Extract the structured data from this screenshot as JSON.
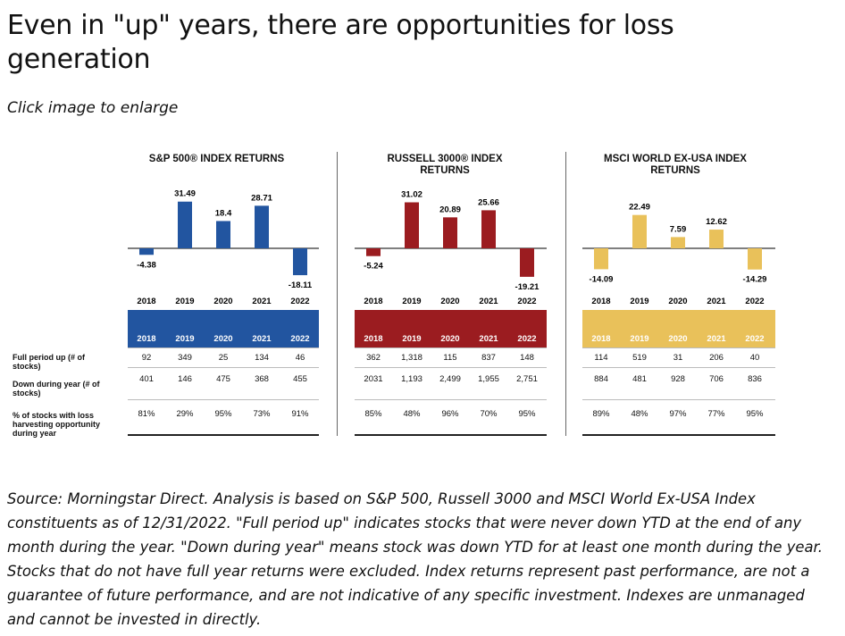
{
  "page": {
    "title": "Even in \"up\" years, there are opportunities for loss generation",
    "subtitle": "Click image to enlarge",
    "source": "Source: Morningstar Direct. Analysis is based on S&P 500, Russell 3000 and MSCI World Ex-USA Index constituents as of 12/31/2022. \"Full period up\" indicates stocks that were never down YTD at the end of any month during the year. \"Down during year\" means stock was down YTD for at least one month during the year. Stocks that do not have full year returns were excluded. Index returns represent past performance, are not a guarantee of future performance, and are not indicative of any specific investment. Indexes are unmanaged and cannot be invested in directly."
  },
  "table": {
    "row_labels": [
      "Full period up (# of stocks)",
      "Down during year (# of stocks)",
      "% of stocks with loss harvesting opportunity during year"
    ]
  },
  "chart_data": [
    {
      "type": "bar",
      "title": "S&P 500® INDEX RETURNS",
      "color": "#2255a0",
      "categories": [
        "2018",
        "2019",
        "2020",
        "2021",
        "2022"
      ],
      "values": [
        -4.38,
        31.49,
        18.4,
        28.71,
        -18.11
      ],
      "value_labels": [
        "-4.38",
        "31.49",
        "18.4",
        "28.71",
        "-18.11"
      ],
      "table": {
        "full_period_up": [
          "92",
          "349",
          "25",
          "134",
          "46"
        ],
        "down_during_year": [
          "401",
          "146",
          "475",
          "368",
          "455"
        ],
        "pct_loss_harvesting": [
          "81%",
          "29%",
          "95%",
          "73%",
          "91%"
        ]
      }
    },
    {
      "type": "bar",
      "title": "RUSSELL 3000® INDEX RETURNS",
      "color": "#9b1c20",
      "categories": [
        "2018",
        "2019",
        "2020",
        "2021",
        "2022"
      ],
      "values": [
        -5.24,
        31.02,
        20.89,
        25.66,
        -19.21
      ],
      "value_labels": [
        "-5.24",
        "31.02",
        "20.89",
        "25.66",
        "-19.21"
      ],
      "table": {
        "full_period_up": [
          "362",
          "1,318",
          "115",
          "837",
          "148"
        ],
        "down_during_year": [
          "2031",
          "1,193",
          "2,499",
          "1,955",
          "2,751"
        ],
        "pct_loss_harvesting": [
          "85%",
          "48%",
          "96%",
          "70%",
          "95%"
        ]
      }
    },
    {
      "type": "bar",
      "title": "MSCI WORLD EX-USA INDEX RETURNS",
      "color": "#e9c15a",
      "categories": [
        "2018",
        "2019",
        "2020",
        "2021",
        "2022"
      ],
      "values": [
        -14.09,
        22.49,
        7.59,
        12.62,
        -14.29
      ],
      "value_labels": [
        "-14.09",
        "22.49",
        "7.59",
        "12.62",
        "-14.29"
      ],
      "table": {
        "full_period_up": [
          "114",
          "519",
          "31",
          "206",
          "40"
        ],
        "down_during_year": [
          "884",
          "481",
          "928",
          "706",
          "836"
        ],
        "pct_loss_harvesting": [
          "89%",
          "48%",
          "97%",
          "77%",
          "95%"
        ]
      }
    }
  ]
}
